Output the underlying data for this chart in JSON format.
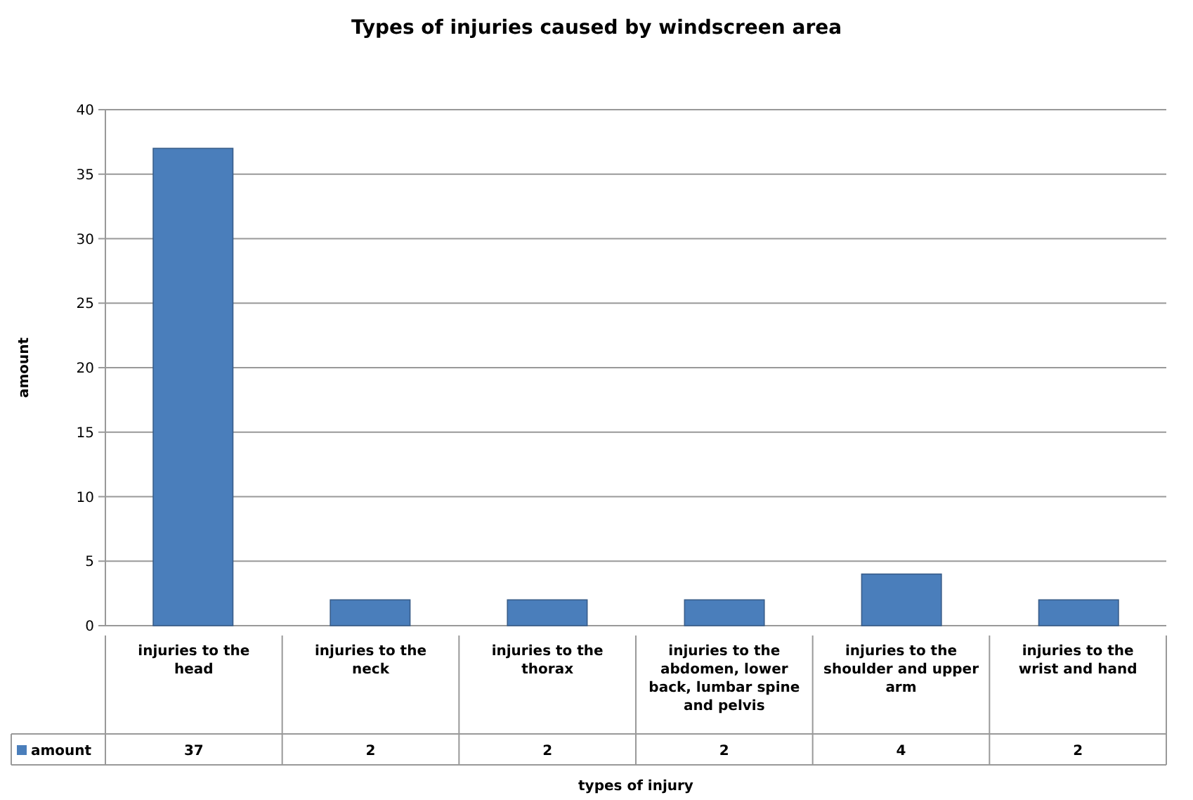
{
  "chart_data": {
    "type": "bar",
    "title": "Types of injuries caused by windscreen area",
    "xlabel": "types of injury",
    "ylabel": "amount",
    "categories": [
      "injuries to the head",
      "injuries to the neck",
      "injuries to the thorax",
      "injuries to the abdomen, lower back, lumbar spine and pelvis",
      "injuries to the shoulder and upper arm",
      "injuries to the wrist and hand"
    ],
    "series": [
      {
        "name": "amount",
        "color": "#4a7ebb",
        "values": [
          37,
          2,
          2,
          2,
          4,
          2
        ]
      }
    ],
    "ylim": [
      0,
      40
    ],
    "yticks": [
      0,
      5,
      10,
      15,
      20,
      25,
      30,
      35,
      40
    ],
    "grid": "y",
    "data_labels": true
  }
}
